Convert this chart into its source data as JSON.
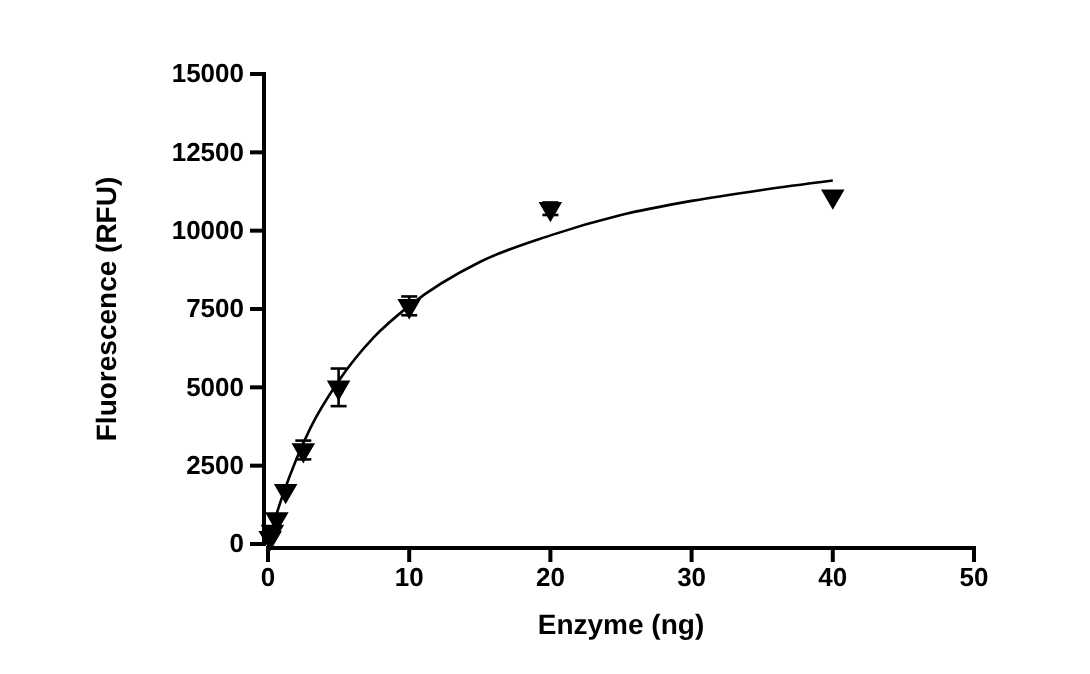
{
  "chart_data": {
    "type": "scatter",
    "xlabel": "Enzyme (ng)",
    "ylabel": "Fluorescence (RFU)",
    "xlim": [
      0,
      50
    ],
    "ylim": [
      0,
      15000
    ],
    "xticks": [
      0,
      10,
      20,
      30,
      40,
      50
    ],
    "yticks": [
      0,
      2500,
      5000,
      7500,
      10000,
      12500,
      15000
    ],
    "grid": false,
    "series": [
      {
        "color": "#000000",
        "marker": "triangle",
        "x": [
          0.156,
          0.3125,
          0.625,
          1.25,
          2.5,
          5,
          10,
          20,
          40
        ],
        "values": [
          200,
          400,
          800,
          1700,
          3000,
          5000,
          7600,
          10700,
          11100
        ],
        "errors": [
          null,
          null,
          null,
          null,
          300,
          600,
          300,
          200,
          null
        ]
      },
      {
        "type": "line",
        "color": "#000000",
        "line_style": "solid",
        "marker": "none",
        "x": [
          0,
          0.5,
          1,
          2,
          3,
          5,
          7.5,
          10,
          15,
          20,
          25,
          30,
          35,
          40
        ],
        "values": [
          0,
          800,
          1500,
          2700,
          3700,
          5200,
          6600,
          7600,
          9000,
          9850,
          10500,
          10950,
          11300,
          11600
        ]
      }
    ]
  }
}
